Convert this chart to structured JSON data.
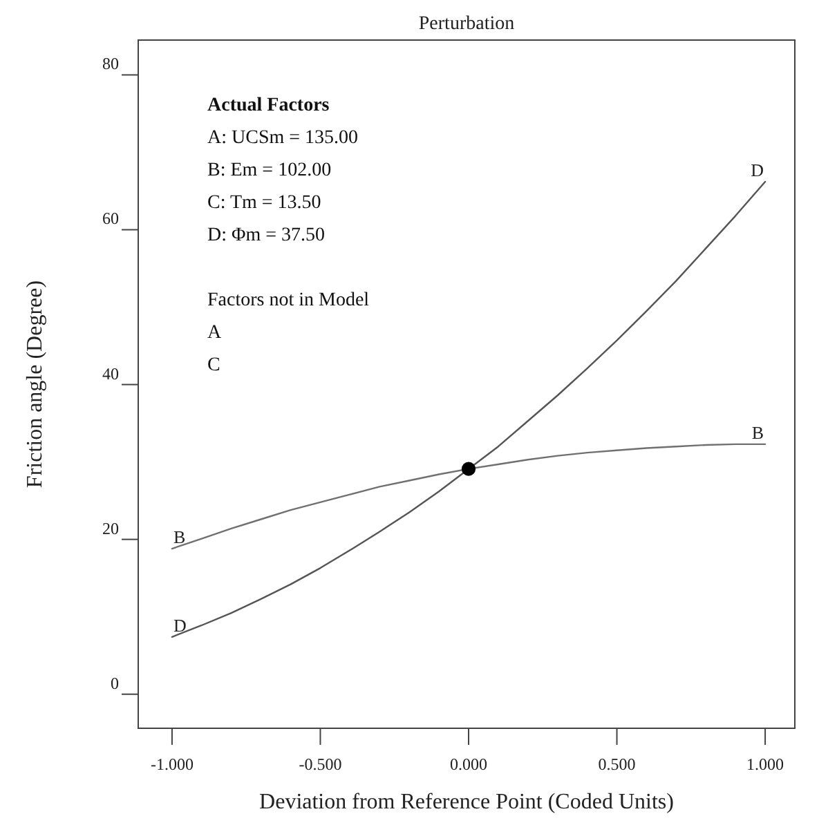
{
  "chart_data": {
    "type": "line",
    "title": "Perturbation",
    "xlabel": "Deviation from Reference Point (Coded Units)",
    "ylabel": "Friction angle (Degree)",
    "annotations": [
      "Actual Factors",
      "A: UCSm = 135.00",
      "B: Em = 102.00",
      "C: Tm = 13.50",
      "D: Φm = 37.50",
      "Factors not in Model",
      "A",
      "C"
    ],
    "xlim": [
      -1.114,
      1.1
    ],
    "ylim": [
      -4.4,
      84.5
    ],
    "xticks": [
      {
        "value": -1,
        "label": "-1.000"
      },
      {
        "value": -0.5,
        "label": "-0.500"
      },
      {
        "value": 0,
        "label": "0.000"
      },
      {
        "value": 0.5,
        "label": "0.500"
      },
      {
        "value": 1,
        "label": "1.000"
      }
    ],
    "yticks": [
      0,
      20,
      40,
      60,
      80
    ],
    "grid": false,
    "marker": "none",
    "line_style": "solid",
    "series": [
      {
        "name": "B",
        "color": "#707070",
        "x": [
          -1,
          -0.9,
          -0.8,
          -0.7,
          -0.6,
          -0.5,
          -0.4,
          -0.3,
          -0.2,
          -0.1,
          0,
          0.1,
          0.2,
          0.3,
          0.4,
          0.5,
          0.6,
          0.7,
          0.8,
          0.9,
          1
        ],
        "values": [
          18.8,
          20.1,
          21.4,
          22.6,
          23.8,
          24.8,
          25.8,
          26.8,
          27.6,
          28.4,
          29.1,
          29.7,
          30.3,
          30.8,
          31.2,
          31.5,
          31.8,
          32.0,
          32.2,
          32.3,
          32.3
        ]
      },
      {
        "name": "D",
        "color": "#555555",
        "x": [
          -1,
          -0.9,
          -0.8,
          -0.7,
          -0.6,
          -0.5,
          -0.4,
          -0.3,
          -0.2,
          -0.1,
          0,
          0.1,
          0.2,
          0.3,
          0.4,
          0.5,
          0.6,
          0.7,
          0.8,
          0.9,
          1
        ],
        "values": [
          7.4,
          8.9,
          10.5,
          12.3,
          14.2,
          16.3,
          18.6,
          21.0,
          23.5,
          26.2,
          29.1,
          32.0,
          35.3,
          38.6,
          42.1,
          45.7,
          49.5,
          53.4,
          57.6,
          61.8,
          66.2
        ]
      },
      {
        "type": "scatter",
        "marker": "circle",
        "color": "#000000",
        "x": [
          0
        ],
        "values": [
          29.1
        ]
      }
    ]
  }
}
